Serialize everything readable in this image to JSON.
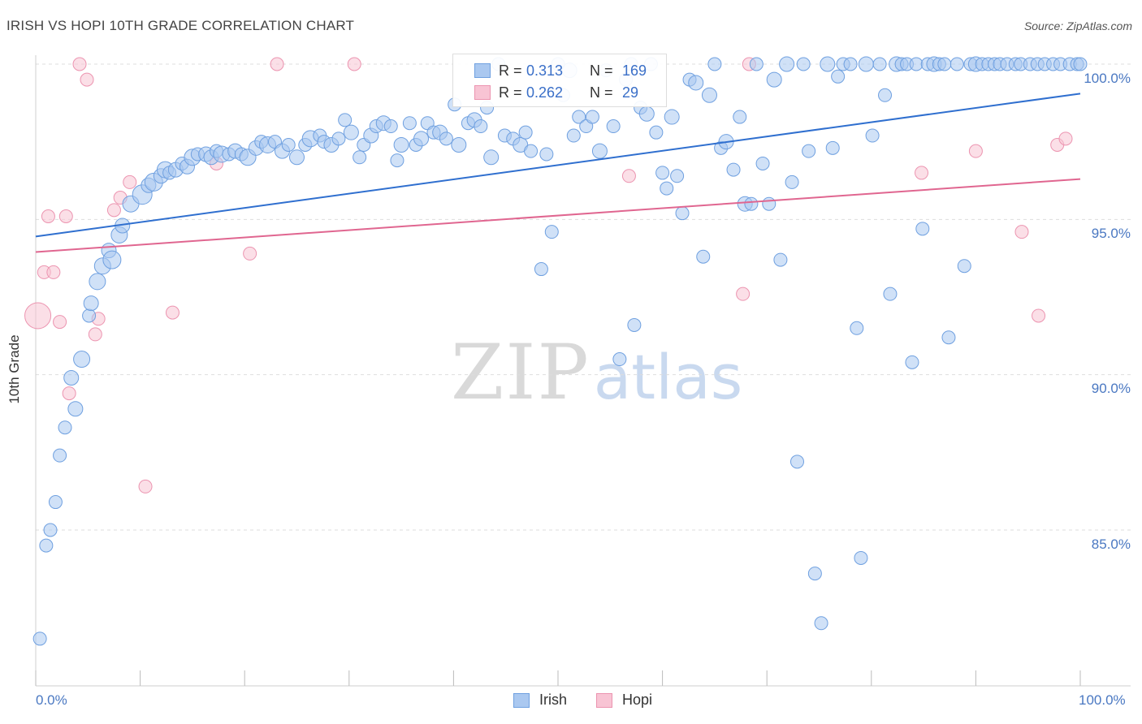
{
  "header": {
    "title": "IRISH VS HOPI 10TH GRADE CORRELATION CHART",
    "source": "Source: ZipAtlas.com"
  },
  "watermark": {
    "part1": "ZIP",
    "part2": "atlas"
  },
  "legend": {
    "rows": [
      {
        "r_label": "R =",
        "r_value": "0.313",
        "n_label": "N =",
        "n_value": "169"
      },
      {
        "r_label": "R =",
        "r_value": "0.262",
        "n_label": "N =",
        "n_value": "29"
      }
    ]
  },
  "colors": {
    "irish_fill": "#aac8f0",
    "irish_stroke": "#6fa0e0",
    "irish_line": "#2f6fcf",
    "hopi_fill": "#f8c4d4",
    "hopi_stroke": "#ec94b0",
    "hopi_line": "#e06690",
    "tick_text": "#4a78c2",
    "grid": "#dddddd"
  },
  "chart_data": {
    "type": "scatter",
    "title": "IRISH VS HOPI 10TH GRADE CORRELATION CHART",
    "xlabel": "",
    "ylabel": "10th Grade",
    "xlim": [
      0,
      100
    ],
    "ylim": [
      80.6,
      100.3
    ],
    "x_tick_labels": [
      "0.0%",
      "100.0%"
    ],
    "y_ticks": [
      85,
      90,
      95,
      100
    ],
    "y_tick_labels": [
      "85.0%",
      "90.0%",
      "95.0%",
      "100.0%"
    ],
    "grid": true,
    "legend_position": "top-center",
    "series": [
      {
        "name": "Irish",
        "r": 0.313,
        "n": 169,
        "trend": {
          "x": [
            0,
            100
          ],
          "y": [
            94.45,
            99.05
          ]
        },
        "points": [
          [
            0.4,
            81.5,
            8
          ],
          [
            1.0,
            84.5,
            8
          ],
          [
            1.4,
            85.0,
            8
          ],
          [
            1.9,
            85.9,
            8
          ],
          [
            2.3,
            87.4,
            8
          ],
          [
            2.8,
            88.3,
            8
          ],
          [
            3.4,
            89.9,
            9
          ],
          [
            3.8,
            88.9,
            9
          ],
          [
            4.4,
            90.5,
            10
          ],
          [
            5.1,
            91.9,
            8
          ],
          [
            5.3,
            92.3,
            9
          ],
          [
            5.9,
            93.0,
            10
          ],
          [
            6.4,
            93.5,
            10
          ],
          [
            7.0,
            94.0,
            9
          ],
          [
            7.3,
            93.7,
            11
          ],
          [
            8.0,
            94.5,
            10
          ],
          [
            8.3,
            94.8,
            9
          ],
          [
            9.1,
            95.5,
            10
          ],
          [
            10.2,
            95.8,
            12
          ],
          [
            10.8,
            96.1,
            9
          ],
          [
            11.3,
            96.2,
            11
          ],
          [
            12.0,
            96.4,
            9
          ],
          [
            12.4,
            96.6,
            10
          ],
          [
            12.8,
            96.5,
            8
          ],
          [
            13.4,
            96.6,
            9
          ],
          [
            14.0,
            96.8,
            8
          ],
          [
            14.5,
            96.7,
            9
          ],
          [
            15.0,
            97.0,
            10
          ],
          [
            15.5,
            97.1,
            8
          ],
          [
            16.3,
            97.1,
            9
          ],
          [
            16.8,
            97.0,
            9
          ],
          [
            17.3,
            97.2,
            8
          ],
          [
            17.8,
            97.1,
            10
          ],
          [
            18.5,
            97.1,
            8
          ],
          [
            19.1,
            97.2,
            9
          ],
          [
            19.7,
            97.1,
            8
          ],
          [
            20.3,
            97.0,
            10
          ],
          [
            21.1,
            97.3,
            9
          ],
          [
            21.6,
            97.5,
            8
          ],
          [
            22.2,
            97.4,
            10
          ],
          [
            22.9,
            97.5,
            8
          ],
          [
            23.6,
            97.2,
            9
          ],
          [
            24.2,
            97.4,
            8
          ],
          [
            25.0,
            97.0,
            9
          ],
          [
            25.8,
            97.4,
            8
          ],
          [
            26.3,
            97.6,
            10
          ],
          [
            27.2,
            97.7,
            8
          ],
          [
            27.6,
            97.5,
            8
          ],
          [
            28.3,
            97.4,
            9
          ],
          [
            29.0,
            97.6,
            8
          ],
          [
            29.6,
            98.2,
            8
          ],
          [
            30.2,
            97.8,
            9
          ],
          [
            31.0,
            97.0,
            8
          ],
          [
            31.4,
            97.4,
            8
          ],
          [
            32.1,
            97.7,
            9
          ],
          [
            32.6,
            98.0,
            8
          ],
          [
            33.3,
            98.1,
            9
          ],
          [
            34.0,
            98.0,
            8
          ],
          [
            34.6,
            96.9,
            8
          ],
          [
            35.0,
            97.4,
            9
          ],
          [
            35.8,
            98.1,
            8
          ],
          [
            36.4,
            97.4,
            8
          ],
          [
            36.9,
            97.6,
            9
          ],
          [
            37.5,
            98.1,
            8
          ],
          [
            38.1,
            97.8,
            8
          ],
          [
            38.7,
            97.8,
            9
          ],
          [
            39.3,
            97.6,
            8
          ],
          [
            40.1,
            98.7,
            8
          ],
          [
            40.5,
            97.4,
            9
          ],
          [
            41.4,
            98.1,
            8
          ],
          [
            42.0,
            98.2,
            9
          ],
          [
            42.6,
            98.0,
            8
          ],
          [
            43.2,
            98.6,
            8
          ],
          [
            43.6,
            97.0,
            9
          ],
          [
            44.3,
            100.0,
            8
          ],
          [
            44.9,
            97.7,
            8
          ],
          [
            45.7,
            97.6,
            8
          ],
          [
            46.4,
            97.4,
            9
          ],
          [
            46.9,
            97.8,
            8
          ],
          [
            47.4,
            97.2,
            8
          ],
          [
            48.4,
            93.4,
            8
          ],
          [
            48.9,
            97.1,
            8
          ],
          [
            49.4,
            94.6,
            8
          ],
          [
            50.0,
            100.0,
            8
          ],
          [
            50.5,
            99.0,
            8
          ],
          [
            51.1,
            99.8,
            9
          ],
          [
            51.5,
            97.7,
            8
          ],
          [
            52.0,
            98.3,
            8
          ],
          [
            52.7,
            98.0,
            8
          ],
          [
            53.3,
            98.3,
            8
          ],
          [
            54.0,
            97.2,
            9
          ],
          [
            54.6,
            99.8,
            8
          ],
          [
            55.3,
            98.0,
            8
          ],
          [
            55.9,
            90.5,
            8
          ],
          [
            56.5,
            99.5,
            8
          ],
          [
            57.0,
            100.0,
            8
          ],
          [
            57.3,
            91.6,
            8
          ],
          [
            57.9,
            98.6,
            8
          ],
          [
            58.5,
            98.4,
            9
          ],
          [
            58.9,
            100.0,
            8
          ],
          [
            59.4,
            97.8,
            8
          ],
          [
            60.0,
            96.5,
            8
          ],
          [
            60.4,
            96.0,
            8
          ],
          [
            60.9,
            98.3,
            9
          ],
          [
            61.4,
            96.4,
            8
          ],
          [
            61.9,
            95.2,
            8
          ],
          [
            62.6,
            99.5,
            8
          ],
          [
            63.2,
            99.4,
            9
          ],
          [
            63.9,
            93.8,
            8
          ],
          [
            64.5,
            99.0,
            9
          ],
          [
            65.0,
            100.0,
            8
          ],
          [
            65.6,
            97.3,
            8
          ],
          [
            66.1,
            97.5,
            9
          ],
          [
            66.8,
            96.6,
            8
          ],
          [
            67.4,
            98.3,
            8
          ],
          [
            67.9,
            95.5,
            9
          ],
          [
            68.5,
            95.5,
            8
          ],
          [
            69.0,
            100.0,
            8
          ],
          [
            69.6,
            96.8,
            8
          ],
          [
            70.2,
            95.5,
            8
          ],
          [
            70.7,
            99.5,
            9
          ],
          [
            71.3,
            93.7,
            8
          ],
          [
            71.9,
            100.0,
            9
          ],
          [
            72.4,
            96.2,
            8
          ],
          [
            72.9,
            87.2,
            8
          ],
          [
            73.5,
            100.0,
            8
          ],
          [
            74.0,
            97.2,
            8
          ],
          [
            74.6,
            83.6,
            8
          ],
          [
            75.2,
            82.0,
            8
          ],
          [
            75.8,
            100.0,
            9
          ],
          [
            76.3,
            97.3,
            8
          ],
          [
            76.8,
            99.6,
            8
          ],
          [
            77.3,
            100.0,
            8
          ],
          [
            78.0,
            100.0,
            8
          ],
          [
            78.6,
            91.5,
            8
          ],
          [
            79.0,
            84.1,
            8
          ],
          [
            79.5,
            100.0,
            9
          ],
          [
            80.1,
            97.7,
            8
          ],
          [
            80.8,
            100.0,
            8
          ],
          [
            81.3,
            99.0,
            8
          ],
          [
            81.8,
            92.6,
            8
          ],
          [
            82.4,
            100.0,
            9
          ],
          [
            82.9,
            100.0,
            8
          ],
          [
            83.4,
            100.0,
            8
          ],
          [
            83.9,
            90.4,
            8
          ],
          [
            84.3,
            100.0,
            8
          ],
          [
            84.9,
            94.7,
            8
          ],
          [
            85.4,
            100.0,
            8
          ],
          [
            86.0,
            100.0,
            9
          ],
          [
            86.5,
            100.0,
            8
          ],
          [
            87.0,
            100.0,
            8
          ],
          [
            87.4,
            91.2,
            8
          ],
          [
            88.2,
            100.0,
            8
          ],
          [
            88.9,
            93.5,
            8
          ],
          [
            89.5,
            100.0,
            8
          ],
          [
            90.0,
            100.0,
            9
          ],
          [
            90.6,
            100.0,
            8
          ],
          [
            91.2,
            100.0,
            8
          ],
          [
            91.8,
            100.0,
            8
          ],
          [
            92.3,
            100.0,
            8
          ],
          [
            93.0,
            100.0,
            8
          ],
          [
            93.8,
            100.0,
            8
          ],
          [
            94.3,
            100.0,
            8
          ],
          [
            95.2,
            100.0,
            8
          ],
          [
            95.9,
            100.0,
            8
          ],
          [
            96.6,
            100.0,
            8
          ],
          [
            97.4,
            100.0,
            8
          ],
          [
            98.1,
            100.0,
            8
          ],
          [
            99.0,
            100.0,
            8
          ],
          [
            99.7,
            100.0,
            8
          ],
          [
            100.0,
            100.0,
            8
          ]
        ]
      },
      {
        "name": "Hopi",
        "r": 0.262,
        "n": 29,
        "trend": {
          "x": [
            0,
            100
          ],
          "y": [
            93.95,
            96.3
          ]
        },
        "points": [
          [
            0.2,
            91.9,
            16
          ],
          [
            0.8,
            93.3,
            8
          ],
          [
            1.2,
            95.1,
            8
          ],
          [
            1.7,
            93.3,
            8
          ],
          [
            2.3,
            91.7,
            8
          ],
          [
            2.9,
            95.1,
            8
          ],
          [
            3.2,
            89.4,
            8
          ],
          [
            4.2,
            100.0,
            8
          ],
          [
            4.9,
            99.5,
            8
          ],
          [
            5.7,
            91.3,
            8
          ],
          [
            6.0,
            91.8,
            8
          ],
          [
            7.5,
            95.3,
            8
          ],
          [
            8.1,
            95.7,
            8
          ],
          [
            9.0,
            96.2,
            8
          ],
          [
            10.5,
            86.4,
            8
          ],
          [
            13.1,
            92.0,
            8
          ],
          [
            17.3,
            96.8,
            8
          ],
          [
            20.5,
            93.9,
            8
          ],
          [
            23.1,
            100.0,
            8
          ],
          [
            30.5,
            100.0,
            8
          ],
          [
            56.8,
            96.4,
            8
          ],
          [
            67.7,
            92.6,
            8
          ],
          [
            68.3,
            100.0,
            8
          ],
          [
            84.8,
            96.5,
            8
          ],
          [
            90.0,
            97.2,
            8
          ],
          [
            94.4,
            94.6,
            8
          ],
          [
            96.0,
            91.9,
            8
          ],
          [
            97.8,
            97.4,
            8
          ],
          [
            98.6,
            97.6,
            8
          ]
        ]
      }
    ]
  },
  "bottom_legend": [
    {
      "label": "Irish"
    },
    {
      "label": "Hopi"
    }
  ]
}
